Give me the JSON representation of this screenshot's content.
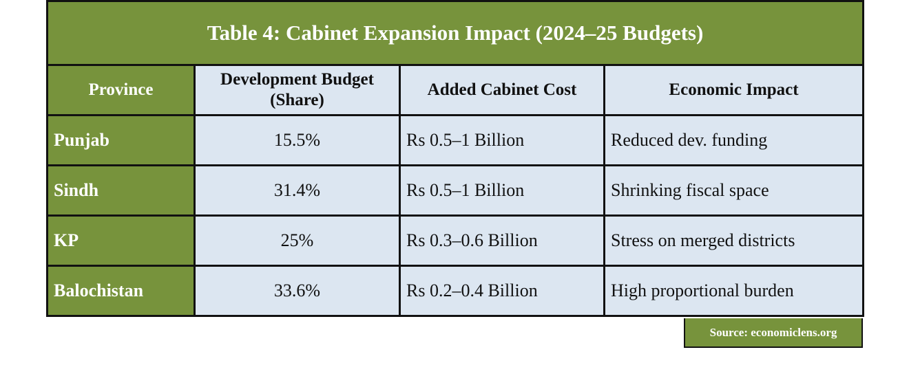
{
  "table": {
    "title": "Table 4: Cabinet Expansion Impact (2024–25 Budgets)",
    "headers": [
      "Province",
      "Development Budget (Share)",
      "Added Cabinet Cost",
      "Economic Impact"
    ],
    "rows": [
      [
        "Punjab",
        "15.5%",
        "Rs 0.5–1 Billion",
        "Reduced dev. funding"
      ],
      [
        "Sindh",
        "31.4%",
        "Rs 0.5–1 Billion",
        "Shrinking fiscal space"
      ],
      [
        "KP",
        "25%",
        "Rs 0.3–0.6 Billion",
        "Stress on merged districts"
      ],
      [
        "Balochistan",
        "33.6%",
        "Rs 0.2–0.4 Billion",
        "High proportional burden"
      ]
    ],
    "source": "Source: economiclens.org"
  },
  "colors": {
    "header_green": "#77933c",
    "cell_blue": "#dce6f1",
    "border": "#111111"
  }
}
